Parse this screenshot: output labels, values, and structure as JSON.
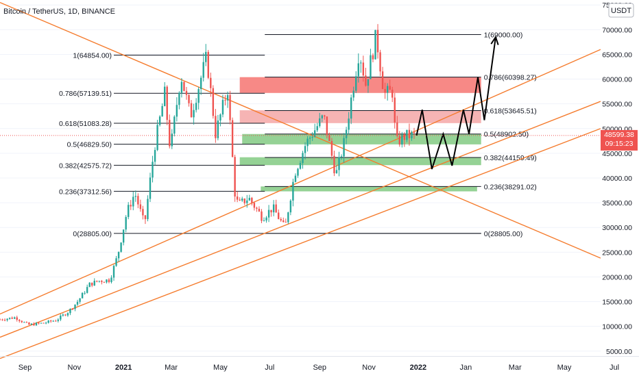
{
  "header": {
    "symbol_title": "Bitcoin / TetherUS, 1D, BINANCE",
    "currency_badge": "USDT"
  },
  "price_axis": {
    "ticks": [
      "75000.00",
      "70000.00",
      "65000.00",
      "60000.00",
      "55000.00",
      "50000.00",
      "45000.00",
      "40000.00",
      "35000.00",
      "30000.00",
      "25000.00",
      "20000.00",
      "15000.00",
      "10000.00",
      "5000.00"
    ],
    "last_price": "48599.38",
    "countdown": "09:15:23"
  },
  "time_axis": {
    "ticks": [
      {
        "label": "Sep",
        "bold": false
      },
      {
        "label": "Nov",
        "bold": false
      },
      {
        "label": "2021",
        "bold": true
      },
      {
        "label": "Mar",
        "bold": false
      },
      {
        "label": "May",
        "bold": false
      },
      {
        "label": "Jul",
        "bold": false
      },
      {
        "label": "Sep",
        "bold": false
      },
      {
        "label": "Nov",
        "bold": false
      },
      {
        "label": "2022",
        "bold": true
      },
      {
        "label": "Jan",
        "bold": false
      },
      {
        "label": "Mar",
        "bold": false
      },
      {
        "label": "May",
        "bold": false
      },
      {
        "label": "Jul",
        "bold": false
      }
    ]
  },
  "colors": {
    "candle_up": "#26a69a",
    "candle_down": "#ef5350",
    "channel_line": "#f57c2e",
    "fib_line": "#131722",
    "zone_red_strong": "#f7837f",
    "zone_red_light": "#f5b0b0",
    "zone_green": "#8fd08f",
    "projection": "#000000",
    "last_price_badge": "#ef5350"
  },
  "chart_data": {
    "type": "candlestick",
    "title": "Bitcoin / TetherUS, 1D, BINANCE",
    "x_range": [
      "2020-08-01",
      "2022-08-15"
    ],
    "y_range": [
      4000,
      76000
    ],
    "price_series": [
      {
        "date": "2020-08-01",
        "price": 11400
      },
      {
        "date": "2020-08-20",
        "price": 11800
      },
      {
        "date": "2020-09-05",
        "price": 10300
      },
      {
        "date": "2020-09-25",
        "price": 10700
      },
      {
        "date": "2020-10-10",
        "price": 11300
      },
      {
        "date": "2020-10-25",
        "price": 13000
      },
      {
        "date": "2020-11-05",
        "price": 15000
      },
      {
        "date": "2020-11-20",
        "price": 18500
      },
      {
        "date": "2020-12-01",
        "price": 19200
      },
      {
        "date": "2020-12-15",
        "price": 19400
      },
      {
        "date": "2020-12-25",
        "price": 24500
      },
      {
        "date": "2021-01-05",
        "price": 33000
      },
      {
        "date": "2021-01-15",
        "price": 37000
      },
      {
        "date": "2021-01-27",
        "price": 30500
      },
      {
        "date": "2021-02-08",
        "price": 46000
      },
      {
        "date": "2021-02-21",
        "price": 57000
      },
      {
        "date": "2021-02-28",
        "price": 45500
      },
      {
        "date": "2021-03-13",
        "price": 61000
      },
      {
        "date": "2021-03-25",
        "price": 52500
      },
      {
        "date": "2021-04-14",
        "price": 64500
      },
      {
        "date": "2021-04-25",
        "price": 49000
      },
      {
        "date": "2021-05-10",
        "price": 58000
      },
      {
        "date": "2021-05-19",
        "price": 37000
      },
      {
        "date": "2021-05-23",
        "price": 34500
      },
      {
        "date": "2021-06-05",
        "price": 36000
      },
      {
        "date": "2021-06-22",
        "price": 32000
      },
      {
        "date": "2021-07-05",
        "price": 34000
      },
      {
        "date": "2021-07-20",
        "price": 29800
      },
      {
        "date": "2021-08-01",
        "price": 41000
      },
      {
        "date": "2021-08-15",
        "price": 47000
      },
      {
        "date": "2021-09-06",
        "price": 52500
      },
      {
        "date": "2021-09-21",
        "price": 40500
      },
      {
        "date": "2021-10-01",
        "price": 47000
      },
      {
        "date": "2021-10-20",
        "price": 66000
      },
      {
        "date": "2021-10-28",
        "price": 59000
      },
      {
        "date": "2021-11-10",
        "price": 68800
      },
      {
        "date": "2021-11-20",
        "price": 57000
      },
      {
        "date": "2021-12-01",
        "price": 57500
      },
      {
        "date": "2021-12-04",
        "price": 47000
      },
      {
        "date": "2021-12-16",
        "price": 48500
      },
      {
        "date": "2021-12-27",
        "price": 48600
      }
    ],
    "fib_levels_left": [
      {
        "label": "1(64854.00)",
        "price": 64854
      },
      {
        "label": "0.786(57139.51)",
        "price": 57139.51
      },
      {
        "label": "0.618(51083.28)",
        "price": 51083.28
      },
      {
        "label": "0.5(46829.50)",
        "price": 46829.5
      },
      {
        "label": "0.382(42575.72)",
        "price": 42575.72
      },
      {
        "label": "0.236(37312.56)",
        "price": 37312.56
      },
      {
        "label": "0(28805.00)",
        "price": 28805
      }
    ],
    "fib_levels_right": [
      {
        "label": "1(69000.00)",
        "price": 69000
      },
      {
        "label": "0.786(60398.27)",
        "price": 60398.27
      },
      {
        "label": "0.618(53645.51)",
        "price": 53645.51
      },
      {
        "label": "0.5(48902.50)",
        "price": 48902.5
      },
      {
        "label": "0.382(44159.49)",
        "price": 44159.49
      },
      {
        "label": "0.236(38291.02)",
        "price": 38291.02
      },
      {
        "label": "0(28805.00)",
        "price": 28805
      }
    ],
    "zones": [
      {
        "start": "2021-05-25",
        "end": "2022-03-20",
        "low": 57200,
        "high": 60400,
        "color": "zone_red_strong"
      },
      {
        "start": "2021-05-25",
        "end": "2022-03-20",
        "low": 51100,
        "high": 53700,
        "color": "zone_red_light"
      },
      {
        "start": "2021-05-28",
        "end": "2022-03-20",
        "low": 46800,
        "high": 48900,
        "color": "zone_green"
      },
      {
        "start": "2021-05-25",
        "end": "2022-03-20",
        "low": 42600,
        "high": 44200,
        "color": "zone_green"
      },
      {
        "start": "2021-06-20",
        "end": "2022-03-15",
        "low": 37300,
        "high": 38300,
        "color": "zone_green"
      }
    ],
    "trendlines": [
      {
        "from": {
          "date": "2020-08-01",
          "price": 75500
        },
        "to": {
          "date": "2022-08-15",
          "price": 23800
        }
      },
      {
        "from": {
          "date": "2020-08-01",
          "price": 7800
        },
        "to": {
          "date": "2022-08-15",
          "price": 55500
        }
      },
      {
        "from": {
          "date": "2020-08-01",
          "price": 3500
        },
        "to": {
          "date": "2022-08-15",
          "price": 50000
        }
      },
      {
        "from": {
          "date": "2020-08-01",
          "price": 12500
        },
        "to": {
          "date": "2022-08-15",
          "price": 66000
        }
      }
    ],
    "projection_path": [
      {
        "date": "2021-12-30",
        "price": 48600
      },
      {
        "date": "2022-01-06",
        "price": 53800
      },
      {
        "date": "2022-01-18",
        "price": 41800
      },
      {
        "date": "2022-02-01",
        "price": 48900
      },
      {
        "date": "2022-02-12",
        "price": 42500
      },
      {
        "date": "2022-02-26",
        "price": 53800
      },
      {
        "date": "2022-03-05",
        "price": 48900
      },
      {
        "date": "2022-03-16",
        "price": 60400
      },
      {
        "date": "2022-03-24",
        "price": 51700
      },
      {
        "date": "2022-04-07",
        "price": 68500
      }
    ]
  }
}
